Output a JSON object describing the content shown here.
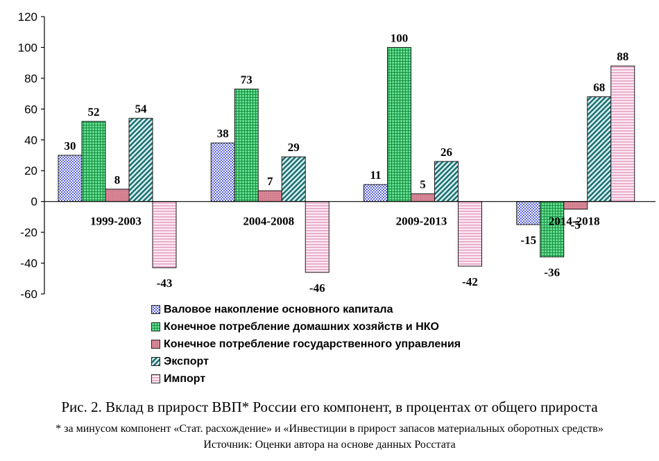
{
  "chart_data": {
    "type": "bar",
    "categories": [
      "1999-2003",
      "2004-2008",
      "2009-2013",
      "2014-2018"
    ],
    "series": [
      {
        "name": "Валовое накопление основного капитала",
        "values": [
          30,
          38,
          11,
          -15
        ],
        "color": "#c8cef8",
        "pattern": "check-blue"
      },
      {
        "name": "Конечное потребление домашних хозяйств и НКО",
        "values": [
          52,
          73,
          100,
          -36
        ],
        "color": "#62d98a",
        "pattern": "grid-green"
      },
      {
        "name": "Конечное потребление государственного управления",
        "values": [
          8,
          7,
          5,
          -5
        ],
        "color": "#d98a9b",
        "pattern": "solid-pink"
      },
      {
        "name": "Экспорт",
        "values": [
          54,
          29,
          26,
          68
        ],
        "color": "#1f7a7a",
        "pattern": "hatch-teal"
      },
      {
        "name": "Импорт",
        "values": [
          -43,
          -46,
          -42,
          88
        ],
        "color": "#f3c6dd",
        "pattern": "hstripe-pink"
      }
    ],
    "yticks": [
      120,
      100,
      80,
      60,
      40,
      20,
      0,
      -20,
      -40,
      -60
    ],
    "ylim": [
      -60,
      120
    ],
    "legend_position": "bottom",
    "grid": false
  },
  "caption": {
    "title": "Рис. 2. Вклад в прирост ВВП* России его компонент, в процентах от общего прироста",
    "note": "* за минусом компонент «Стат. расхождение» и «Инвестиции в прирост запасов материальных оборотных средств»",
    "source": "Источник: Оценки автора на основе данных Росстата"
  }
}
